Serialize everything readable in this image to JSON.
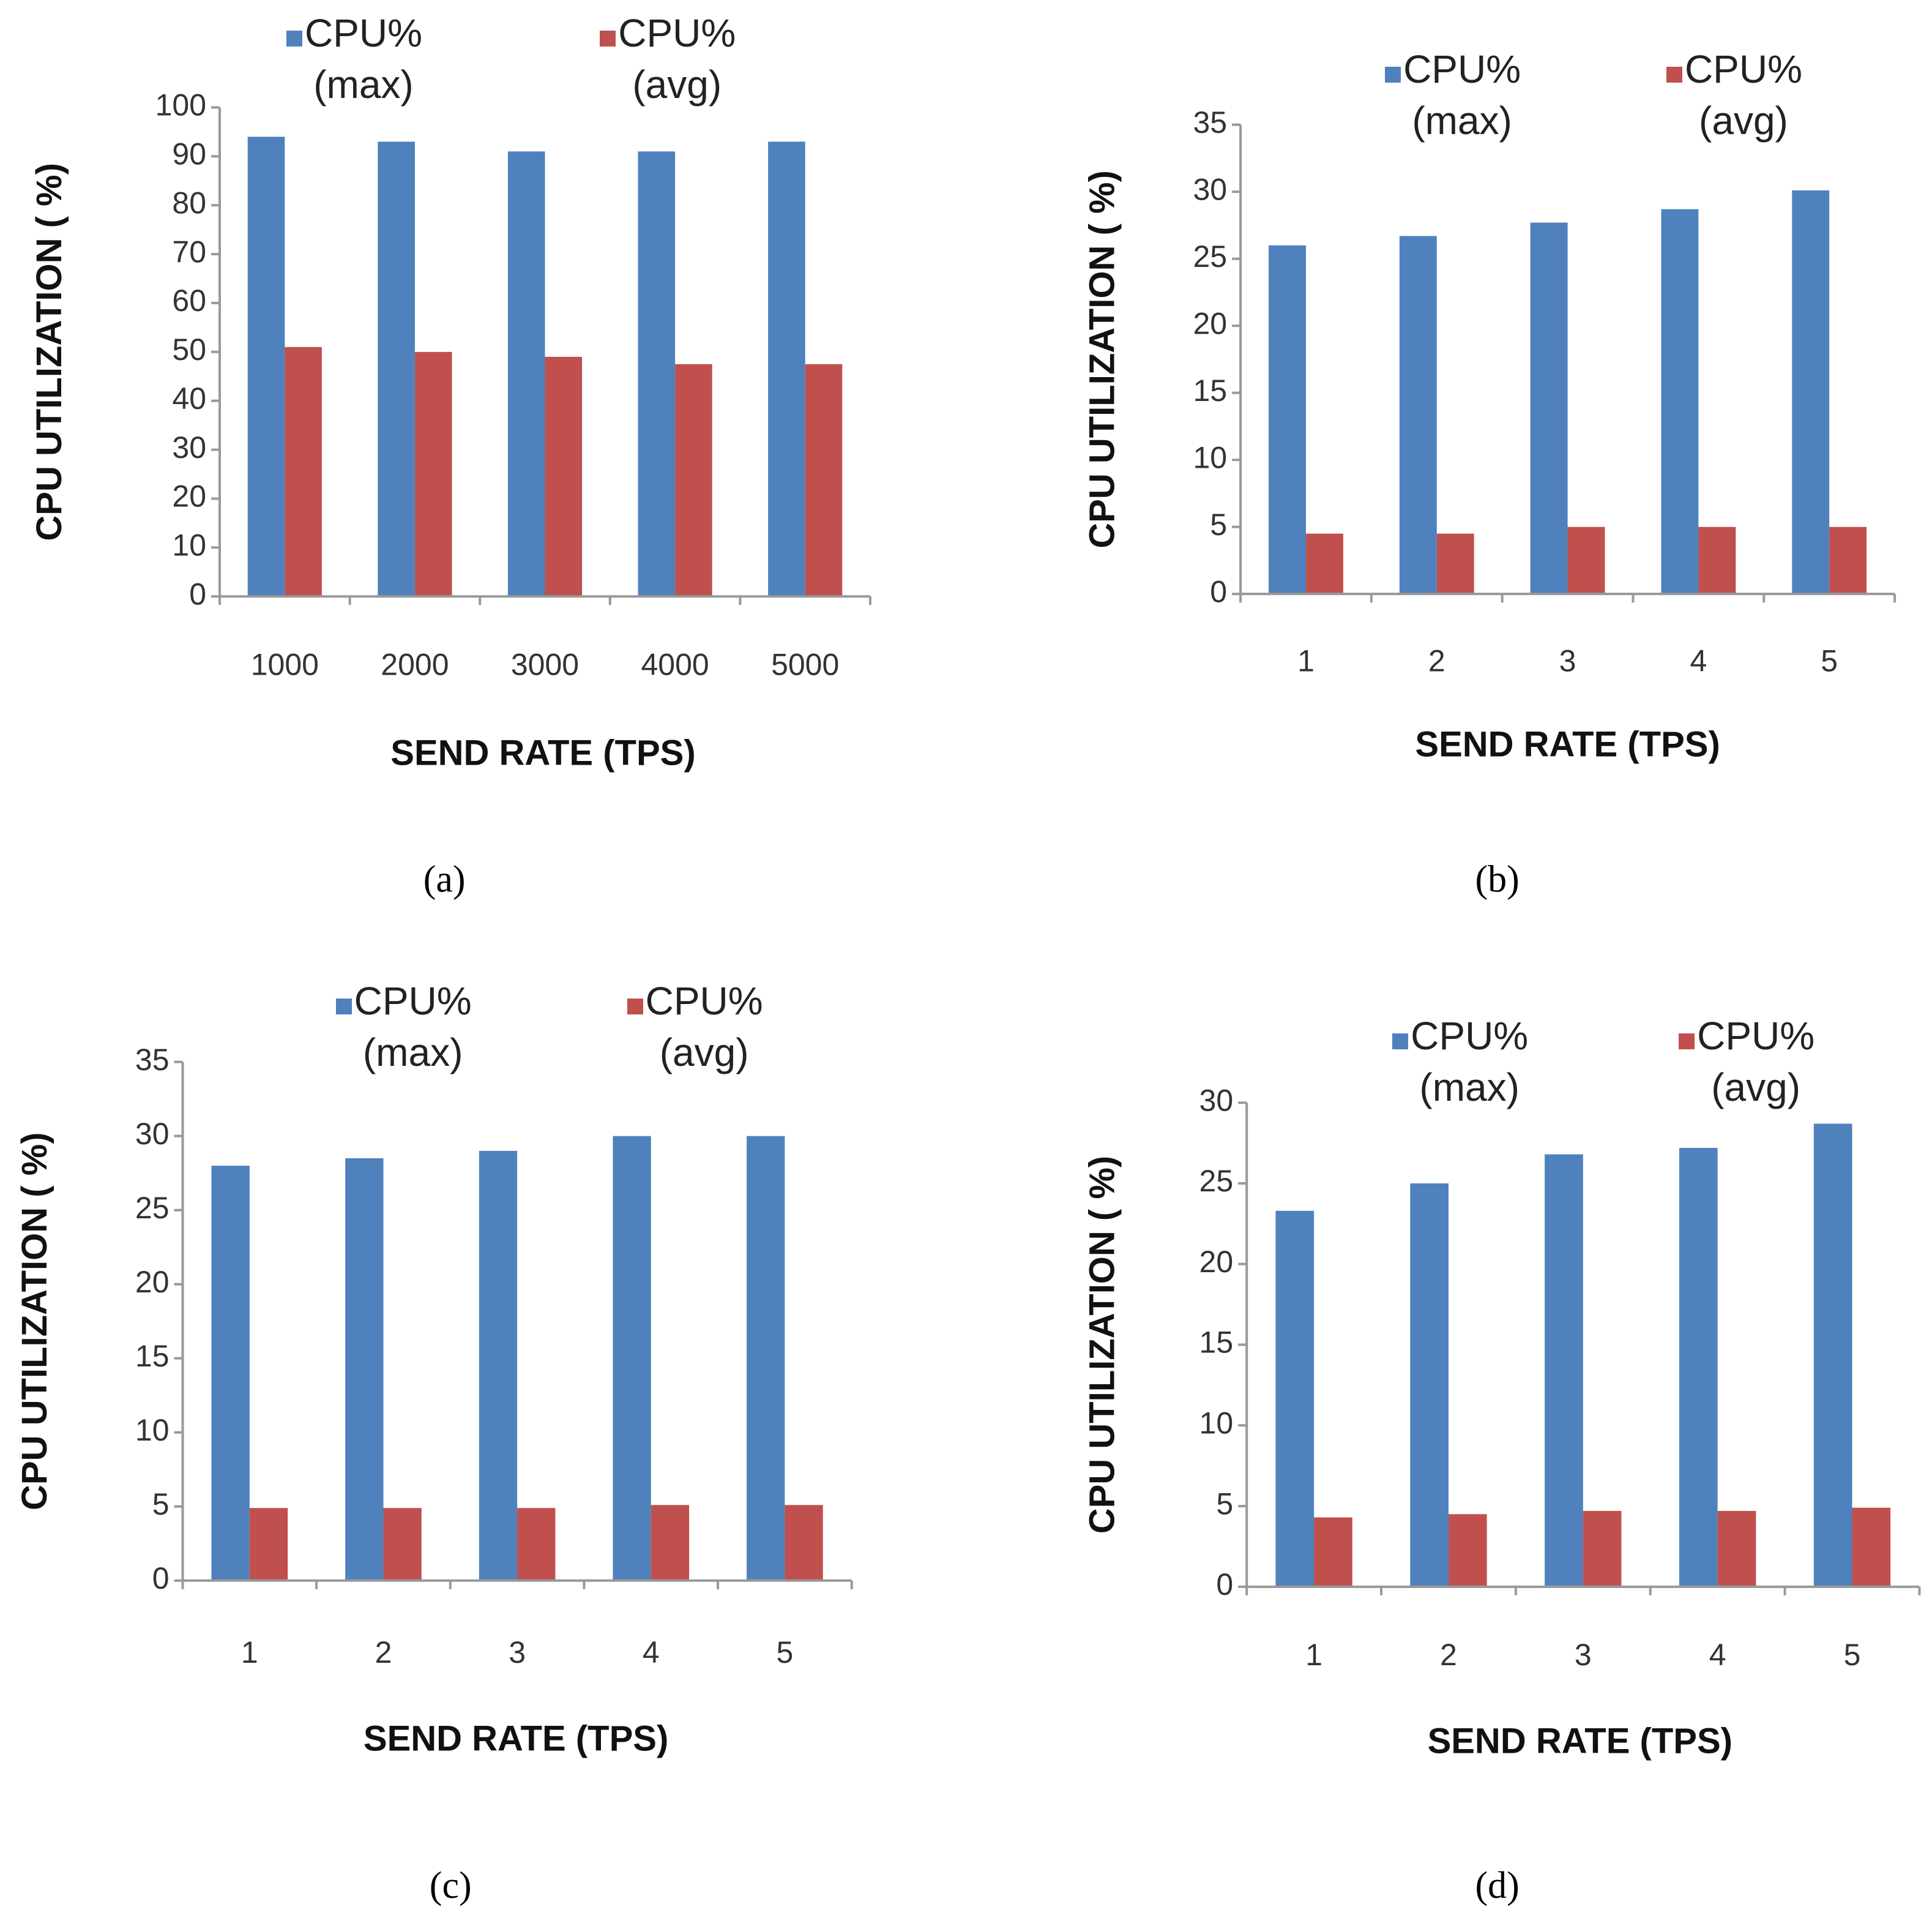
{
  "chart_data": [
    {
      "type": "bar",
      "caption": "(a)",
      "ylabel": "CPU UTILIZATION ( %)",
      "xlabel": "SEND RATE (TPS)",
      "categories": [
        "1000",
        "2000",
        "3000",
        "4000",
        "5000"
      ],
      "series": [
        {
          "name": "CPU%\n(max)",
          "color": "#4f81bd",
          "values": [
            94,
            93,
            91,
            91,
            93
          ]
        },
        {
          "name": "CPU%\n(avg)",
          "color": "#c0504d",
          "values": [
            51,
            50,
            49,
            47.5,
            47.5
          ]
        }
      ],
      "ylim": [
        0,
        100
      ],
      "yticks": [
        0,
        10,
        20,
        30,
        40,
        50,
        60,
        70,
        80,
        90,
        100
      ]
    },
    {
      "type": "bar",
      "caption": "(b)",
      "ylabel": "CPU UTILIZATION ( %)",
      "xlabel": "SEND RATE (TPS)",
      "categories": [
        "1",
        "2",
        "3",
        "4",
        "5"
      ],
      "series": [
        {
          "name": "CPU%\n(max)",
          "color": "#4f81bd",
          "values": [
            26,
            26.7,
            27.7,
            28.7,
            30.1
          ]
        },
        {
          "name": "CPU%\n(avg)",
          "color": "#c0504d",
          "values": [
            4.5,
            4.5,
            5,
            5,
            5
          ]
        }
      ],
      "ylim": [
        0,
        35
      ],
      "yticks": [
        0,
        5,
        10,
        15,
        20,
        25,
        30,
        35
      ]
    },
    {
      "type": "bar",
      "caption": "(c)",
      "ylabel": "CPU UTILIZATION ( %)",
      "xlabel": "SEND RATE (TPS)",
      "categories": [
        "1",
        "2",
        "3",
        "4",
        "5"
      ],
      "series": [
        {
          "name": "CPU%\n(max)",
          "color": "#4f81bd",
          "values": [
            28,
            28.5,
            29,
            30,
            30
          ]
        },
        {
          "name": "CPU%\n(avg)",
          "color": "#c0504d",
          "values": [
            4.9,
            4.9,
            4.9,
            5.1,
            5.1
          ]
        }
      ],
      "ylim": [
        0,
        35
      ],
      "yticks": [
        0,
        5,
        10,
        15,
        20,
        25,
        30,
        35
      ]
    },
    {
      "type": "bar",
      "caption": "(d)",
      "ylabel": "CPU UTILIZATION ( %)",
      "xlabel": "SEND RATE (TPS)",
      "categories": [
        "1",
        "2",
        "3",
        "4",
        "5"
      ],
      "series": [
        {
          "name": "CPU%\n(max)",
          "color": "#4f81bd",
          "values": [
            23.3,
            25,
            26.8,
            27.2,
            28.7
          ]
        },
        {
          "name": "CPU%\n(avg)",
          "color": "#c0504d",
          "values": [
            4.3,
            4.5,
            4.7,
            4.7,
            4.9
          ]
        }
      ],
      "ylim": [
        0,
        30
      ],
      "yticks": [
        0,
        5,
        10,
        15,
        20,
        25,
        30
      ]
    }
  ]
}
